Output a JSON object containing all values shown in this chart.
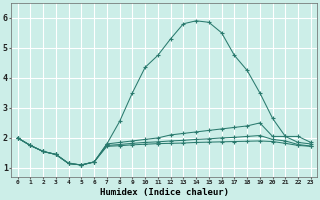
{
  "xlabel": "Humidex (Indice chaleur)",
  "xlim": [
    -0.5,
    23.5
  ],
  "ylim": [
    0.7,
    6.5
  ],
  "xtick_labels": [
    "0",
    "1",
    "2",
    "3",
    "4",
    "5",
    "6",
    "7",
    "8",
    "9",
    "10",
    "11",
    "12",
    "13",
    "14",
    "15",
    "16",
    "17",
    "18",
    "19",
    "20",
    "21",
    "22",
    "23"
  ],
  "ytick_values": [
    1,
    2,
    3,
    4,
    5,
    6
  ],
  "background_color": "#cceee8",
  "grid_color": "#ffffff",
  "line_color": "#2a7a6e",
  "lines": [
    {
      "x": [
        0,
        1,
        2,
        3,
        4,
        5,
        6,
        7,
        8,
        9,
        10,
        11,
        12,
        13,
        14,
        15,
        16,
        17,
        18,
        19,
        20,
        21,
        22,
        23
      ],
      "y": [
        2.0,
        1.75,
        1.55,
        1.45,
        1.15,
        1.1,
        1.2,
        1.8,
        2.55,
        3.5,
        4.35,
        4.75,
        5.3,
        5.8,
        5.9,
        5.85,
        5.5,
        4.75,
        4.25,
        3.5,
        2.65,
        2.05,
        2.05,
        1.85
      ]
    },
    {
      "x": [
        0,
        1,
        2,
        3,
        4,
        5,
        6,
        7,
        8,
        9,
        10,
        11,
        12,
        13,
        14,
        15,
        16,
        17,
        18,
        19,
        20,
        21,
        22,
        23
      ],
      "y": [
        2.0,
        1.75,
        1.55,
        1.45,
        1.15,
        1.1,
        1.2,
        1.8,
        1.85,
        1.9,
        1.95,
        2.0,
        2.1,
        2.15,
        2.2,
        2.25,
        2.3,
        2.35,
        2.4,
        2.5,
        2.05,
        2.05,
        1.85,
        1.8
      ]
    },
    {
      "x": [
        0,
        1,
        2,
        3,
        4,
        5,
        6,
        7,
        8,
        9,
        10,
        11,
        12,
        13,
        14,
        15,
        16,
        17,
        18,
        19,
        20,
        21,
        22,
        23
      ],
      "y": [
        2.0,
        1.75,
        1.55,
        1.45,
        1.15,
        1.1,
        1.2,
        1.75,
        1.78,
        1.82,
        1.85,
        1.87,
        1.9,
        1.92,
        1.95,
        1.97,
        2.0,
        2.02,
        2.05,
        2.08,
        1.95,
        1.9,
        1.78,
        1.73
      ]
    },
    {
      "x": [
        0,
        1,
        2,
        3,
        4,
        5,
        6,
        7,
        8,
        9,
        10,
        11,
        12,
        13,
        14,
        15,
        16,
        17,
        18,
        19,
        20,
        21,
        22,
        23
      ],
      "y": [
        2.0,
        1.75,
        1.55,
        1.45,
        1.15,
        1.1,
        1.2,
        1.72,
        1.74,
        1.77,
        1.79,
        1.81,
        1.82,
        1.83,
        1.85,
        1.86,
        1.87,
        1.88,
        1.89,
        1.9,
        1.88,
        1.82,
        1.75,
        1.72
      ]
    }
  ]
}
